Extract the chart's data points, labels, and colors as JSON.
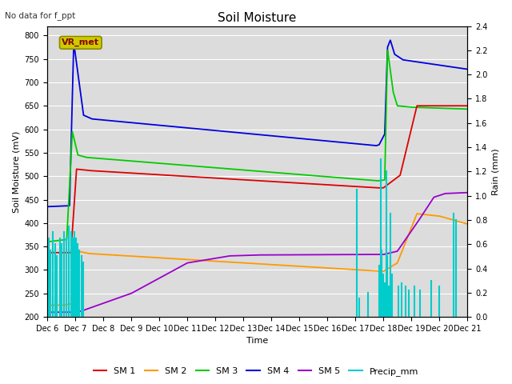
{
  "title": "Soil Moisture",
  "subtitle": "No data for f_ppt",
  "xlabel": "Time",
  "ylabel_left": "Soil Moisture (mV)",
  "ylabel_right": "Rain (mm)",
  "ylim_left": [
    200,
    820
  ],
  "ylim_right": [
    0.0,
    2.4
  ],
  "yticks_left": [
    200,
    250,
    300,
    350,
    400,
    450,
    500,
    550,
    600,
    650,
    700,
    750,
    800
  ],
  "yticks_right": [
    0.0,
    0.2,
    0.4,
    0.6,
    0.8,
    1.0,
    1.2,
    1.4,
    1.6,
    1.8,
    2.0,
    2.2,
    2.4
  ],
  "xtick_labels": [
    "Dec 6",
    "Dec 7",
    "Dec 8",
    "Dec 9",
    "Dec 10",
    "Dec 11",
    "Dec 12",
    "Dec 13",
    "Dec 14",
    "Dec 15",
    "Dec 16",
    "Dec 17",
    "Dec 18",
    "Dec 19",
    "Dec 20",
    "Dec 21"
  ],
  "colors": {
    "SM1": "#dd0000",
    "SM2": "#ff9900",
    "SM3": "#00cc00",
    "SM4": "#0000dd",
    "SM5": "#9900cc",
    "Precip": "#00cccc",
    "plot_bg": "#dcdcdc",
    "fig_bg": "#ffffff",
    "annotation_bg": "#cccc00",
    "annotation_border": "#888800",
    "annotation_text": "#880000",
    "grid": "#ffffff"
  },
  "annotation_text": "VR_met",
  "legend_labels": [
    "SM 1",
    "SM 2",
    "SM 3",
    "SM 4",
    "SM 5",
    "Precip_mm"
  ],
  "title_fontsize": 11,
  "label_fontsize": 8,
  "tick_fontsize": 7,
  "legend_fontsize": 8
}
